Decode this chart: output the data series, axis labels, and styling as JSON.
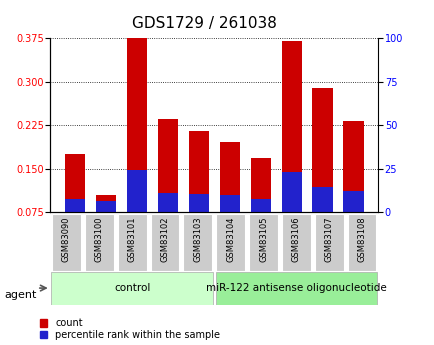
{
  "title": "GDS1729 / 261038",
  "samples": [
    "GSM83090",
    "GSM83100",
    "GSM83101",
    "GSM83102",
    "GSM83103",
    "GSM83104",
    "GSM83105",
    "GSM83106",
    "GSM83107",
    "GSM83108"
  ],
  "count_values": [
    0.175,
    0.105,
    0.375,
    0.235,
    0.215,
    0.195,
    0.168,
    0.37,
    0.288,
    0.232
  ],
  "percentile_values": [
    0.098,
    0.095,
    0.148,
    0.108,
    0.107,
    0.105,
    0.098,
    0.145,
    0.118,
    0.112
  ],
  "ylim_left": [
    0.075,
    0.375
  ],
  "yticks_left": [
    0.075,
    0.15,
    0.225,
    0.3,
    0.375
  ],
  "ylim_right": [
    0,
    100
  ],
  "yticks_right": [
    0,
    25,
    50,
    75,
    100
  ],
  "bar_color_red": "#cc0000",
  "bar_color_blue": "#2222cc",
  "bar_width": 0.65,
  "group_labels": [
    "control",
    "miR-122 antisense oligonucleotide"
  ],
  "group_color_ctrl": "#ccffcc",
  "group_color_mir": "#99ee99",
  "agent_label": "agent",
  "grid_color": "black",
  "title_fontsize": 11,
  "tick_fontsize": 7,
  "sample_fontsize": 6,
  "group_fontsize": 7.5,
  "legend_fontsize": 7
}
